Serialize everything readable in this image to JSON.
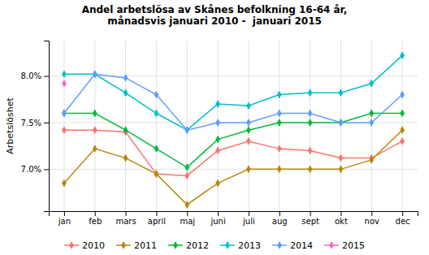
{
  "chart_data": {
    "type": "line",
    "title": "Andel arbetslösa av Skånes befolkning 16-64 år,\nmånadsvis januari 2010 -  januari 2015",
    "y_label": "Arbetslöshet",
    "categories": [
      "jan",
      "feb",
      "mars",
      "april",
      "maj",
      "juni",
      "juli",
      "aug",
      "sept",
      "okt",
      "nov",
      "dec"
    ],
    "series": [
      {
        "name": "2010",
        "color": "#F8766D",
        "values": [
          7.42,
          7.42,
          7.4,
          6.95,
          6.93,
          7.2,
          7.3,
          7.22,
          7.2,
          7.12,
          7.12,
          7.3
        ]
      },
      {
        "name": "2011",
        "color": "#B8860B",
        "values": [
          6.85,
          7.22,
          7.12,
          6.95,
          6.62,
          6.85,
          7.0,
          7.0,
          7.0,
          7.0,
          7.1,
          7.42
        ]
      },
      {
        "name": "2012",
        "color": "#00BA38",
        "values": [
          7.6,
          7.6,
          7.42,
          7.22,
          7.02,
          7.32,
          7.42,
          7.5,
          7.5,
          7.5,
          7.6,
          7.6
        ]
      },
      {
        "name": "2013",
        "color": "#00BFC4",
        "values": [
          8.02,
          8.02,
          7.82,
          7.6,
          7.42,
          7.7,
          7.68,
          7.8,
          7.82,
          7.82,
          7.92,
          8.22
        ]
      },
      {
        "name": "2014",
        "color": "#619CFF",
        "values": [
          7.6,
          8.02,
          7.98,
          7.8,
          7.42,
          7.5,
          7.5,
          7.6,
          7.6,
          7.5,
          7.5,
          7.8
        ]
      },
      {
        "name": "2015",
        "color": "#FF61CC",
        "values": [
          7.92,
          null,
          null,
          null,
          null,
          null,
          null,
          null,
          null,
          null,
          null,
          null
        ]
      }
    ],
    "ylim": [
      6.55,
      8.38
    ],
    "yticks": [
      {
        "value": 7.0,
        "label": "7.0%"
      },
      {
        "value": 7.5,
        "label": "7.5%"
      },
      {
        "value": 8.0,
        "label": "8.0%"
      }
    ],
    "grid": true,
    "legend": "bottom",
    "marker": "diamond"
  }
}
